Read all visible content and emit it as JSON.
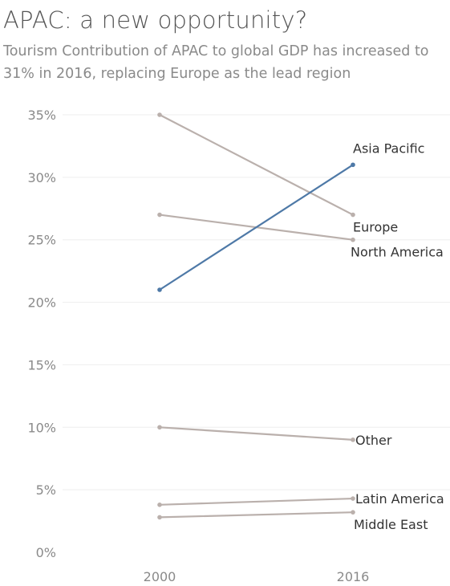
{
  "title": "APAC: a new opportunity?",
  "subtitle": "Tourism Contribution of APAC to global GDP has increased to 31% in 2016, replacing Europe as the lead region",
  "chart_data": {
    "type": "line",
    "title": "APAC: a new opportunity?",
    "subtitle": "Tourism Contribution of APAC to global GDP has increased to 31% in 2016, replacing Europe as the lead region",
    "x": [
      "2000",
      "2016"
    ],
    "y_ticks": [
      "0%",
      "5%",
      "10%",
      "15%",
      "20%",
      "25%",
      "30%",
      "35%"
    ],
    "ylim": [
      0,
      35
    ],
    "grid": true,
    "legend": "none",
    "series": [
      {
        "name": "Asia Pacific",
        "values": [
          21,
          31
        ],
        "color": "#4e79a7",
        "highlight": true
      },
      {
        "name": "Europe",
        "values": [
          35,
          27
        ],
        "color": "#bab0ac"
      },
      {
        "name": "North America",
        "values": [
          27,
          25
        ],
        "color": "#bab0ac"
      },
      {
        "name": "Other",
        "values": [
          10,
          9
        ],
        "color": "#bab0ac"
      },
      {
        "name": "Latin America",
        "values": [
          3.8,
          4.3
        ],
        "color": "#bab0ac"
      },
      {
        "name": "Middle East",
        "values": [
          2.8,
          3.2
        ],
        "color": "#bab0ac"
      }
    ]
  }
}
